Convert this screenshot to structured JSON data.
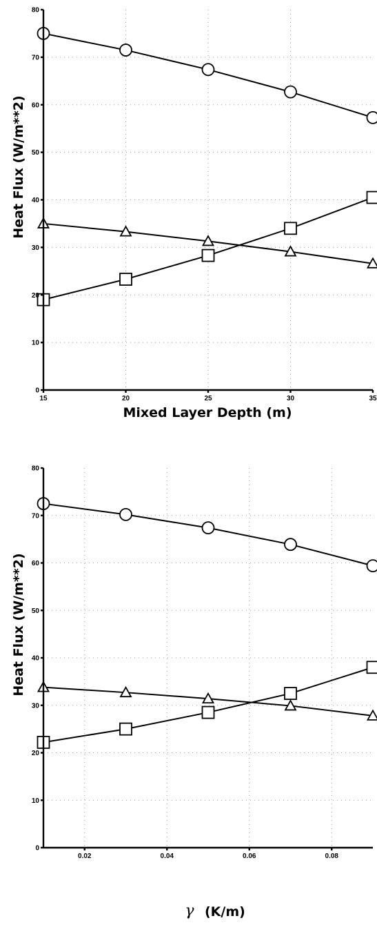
{
  "chart_data": [
    {
      "type": "line",
      "xlabel": "Mixed Layer Depth (m)",
      "ylabel": "Heat Flux (W/m**2)",
      "xlim": [
        15,
        35
      ],
      "ylim": [
        0,
        80
      ],
      "x_ticks": [
        "15",
        "20",
        "25",
        "30",
        "35"
      ],
      "y_ticks": [
        "0",
        "10",
        "20",
        "30",
        "40",
        "50",
        "60",
        "70",
        "80"
      ],
      "grid": true,
      "x": [
        15,
        20,
        25,
        30,
        35
      ],
      "series": [
        {
          "marker": "circle",
          "values": [
            75,
            71.5,
            67.4,
            62.7,
            57.3
          ]
        },
        {
          "marker": "triangle",
          "values": [
            35,
            33.3,
            31.3,
            29.1,
            26.6
          ]
        },
        {
          "marker": "square",
          "values": [
            19,
            23.3,
            28.3,
            34,
            40.5
          ]
        }
      ]
    },
    {
      "type": "line",
      "xlabel_symbol": "γ",
      "xlabel": "(K/m)",
      "ylabel": "Heat Flux (W/m**2)",
      "xlim": [
        0.01,
        0.09
      ],
      "ylim": [
        0,
        80
      ],
      "x_ticks": [
        "0.02",
        "0.04",
        "0.06",
        "0.08"
      ],
      "y_ticks": [
        "0",
        "10",
        "20",
        "30",
        "40",
        "50",
        "60",
        "70",
        "80"
      ],
      "grid": true,
      "x": [
        0.01,
        0.03,
        0.05,
        0.07,
        0.09
      ],
      "series": [
        {
          "marker": "circle",
          "values": [
            72.5,
            70.2,
            67.4,
            63.9,
            59.4
          ]
        },
        {
          "marker": "triangle",
          "values": [
            33.8,
            32.7,
            31.4,
            29.9,
            27.8
          ]
        },
        {
          "marker": "square",
          "values": [
            22.2,
            25,
            28.5,
            32.5,
            38
          ]
        }
      ]
    }
  ]
}
